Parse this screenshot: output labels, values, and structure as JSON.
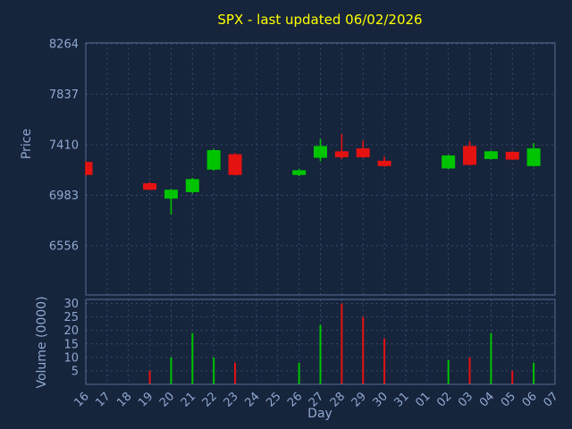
{
  "title": "SPX - last updated 06/02/2026",
  "colors": {
    "background": "#16243c",
    "title": "#ffff00",
    "axis_text": "#90a8d0",
    "grid": "#3e5070",
    "frame": "#5a6e94",
    "up": "#00c400",
    "down": "#e51212"
  },
  "chart_data": [
    {
      "type": "candlestick",
      "panel": "price",
      "title": "SPX - last updated 06/02/2026",
      "xlabel": "Day",
      "ylabel": "Price",
      "legend": "none",
      "grid": "dashed",
      "x_categories": [
        "16",
        "17",
        "18",
        "19",
        "20",
        "21",
        "22",
        "23",
        "24",
        "25",
        "26",
        "27",
        "28",
        "29",
        "30",
        "31",
        "01",
        "02",
        "03",
        "04",
        "05",
        "06",
        "07"
      ],
      "y_ticks": [
        8264,
        7837,
        7410,
        6983,
        6556
      ],
      "ylim": [
        6140,
        8272
      ],
      "candles": [
        {
          "day": "16",
          "open": 7265,
          "high": 7270,
          "low": 7150,
          "close": 7155
        },
        {
          "day": "19",
          "open": 7085,
          "high": 7095,
          "low": 7025,
          "close": 7030
        },
        {
          "day": "20",
          "open": 6955,
          "high": 7035,
          "low": 6820,
          "close": 7030
        },
        {
          "day": "21",
          "open": 7010,
          "high": 7130,
          "low": 7000,
          "close": 7120
        },
        {
          "day": "22",
          "open": 7200,
          "high": 7375,
          "low": 7190,
          "close": 7365
        },
        {
          "day": "23",
          "open": 7330,
          "high": 7340,
          "low": 7150,
          "close": 7155
        },
        {
          "day": "26",
          "open": 7155,
          "high": 7205,
          "low": 7145,
          "close": 7195
        },
        {
          "day": "27",
          "open": 7300,
          "high": 7460,
          "low": 7270,
          "close": 7400
        },
        {
          "day": "28",
          "open": 7355,
          "high": 7500,
          "low": 7290,
          "close": 7305
        },
        {
          "day": "29",
          "open": 7380,
          "high": 7445,
          "low": 7300,
          "close": 7305
        },
        {
          "day": "30",
          "open": 7275,
          "high": 7310,
          "low": 7225,
          "close": 7230
        },
        {
          "day": "02",
          "open": 7210,
          "high": 7325,
          "low": 7205,
          "close": 7320
        },
        {
          "day": "03",
          "open": 7400,
          "high": 7440,
          "low": 7235,
          "close": 7240
        },
        {
          "day": "04",
          "open": 7290,
          "high": 7360,
          "low": 7285,
          "close": 7355
        },
        {
          "day": "05",
          "open": 7350,
          "high": 7355,
          "low": 7280,
          "close": 7285
        },
        {
          "day": "06",
          "open": 7230,
          "high": 7425,
          "low": 7225,
          "close": 7380
        }
      ]
    },
    {
      "type": "bar",
      "panel": "volume",
      "ylabel": "Volume (0000)",
      "grid": "dashed",
      "y_ticks": [
        30,
        25,
        20,
        15,
        10,
        5
      ],
      "ylim": [
        0,
        31.5
      ],
      "bars": [
        {
          "day": "19",
          "value": 5,
          "direction": "down"
        },
        {
          "day": "20",
          "value": 10,
          "direction": "up"
        },
        {
          "day": "21",
          "value": 19,
          "direction": "up"
        },
        {
          "day": "22",
          "value": 10,
          "direction": "up"
        },
        {
          "day": "23",
          "value": 8,
          "direction": "down"
        },
        {
          "day": "26",
          "value": 8,
          "direction": "up"
        },
        {
          "day": "27",
          "value": 22,
          "direction": "up"
        },
        {
          "day": "28",
          "value": 30,
          "direction": "down"
        },
        {
          "day": "29",
          "value": 25,
          "direction": "down"
        },
        {
          "day": "30",
          "value": 17,
          "direction": "down"
        },
        {
          "day": "02",
          "value": 9,
          "direction": "up"
        },
        {
          "day": "03",
          "value": 10,
          "direction": "down"
        },
        {
          "day": "04",
          "value": 19,
          "direction": "up"
        },
        {
          "day": "05",
          "value": 5,
          "direction": "down"
        },
        {
          "day": "06",
          "value": 8,
          "direction": "up"
        }
      ]
    }
  ]
}
